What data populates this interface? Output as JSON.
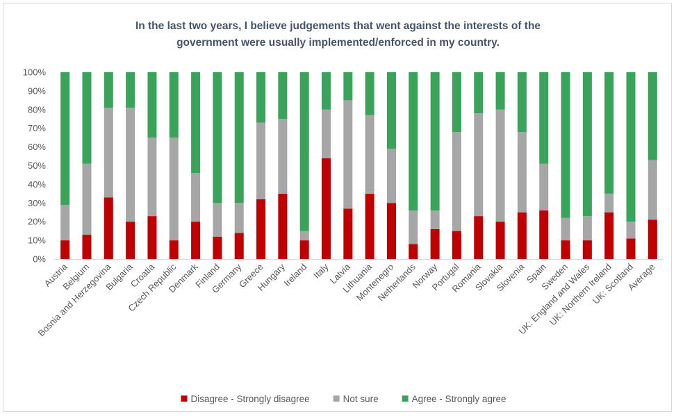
{
  "chart_data": {
    "type": "bar",
    "stacked": true,
    "percent_stacked": true,
    "title_lines": [
      "In the last two years, I believe judgements that went against the interests of the",
      "government were usually implemented/enforced in my country."
    ],
    "xlabel": "",
    "ylabel": "",
    "ylim": [
      0,
      100
    ],
    "y_ticks": [
      "0%",
      "10%",
      "20%",
      "30%",
      "40%",
      "50%",
      "60%",
      "70%",
      "80%",
      "90%",
      "100%"
    ],
    "grid": false,
    "legend_position": "bottom",
    "categories": [
      "Austria",
      "Belgium",
      "Bosnia and Herzegovina",
      "Bulgaria",
      "Croatia",
      "Czech Republic",
      "Denmark",
      "Finland",
      "Germany",
      "Greece",
      "Hungary",
      "Ireland",
      "Italy",
      "Latvia",
      "Lithuania",
      "Montenegro",
      "Netherlands",
      "Norway",
      "Portugal",
      "Romania",
      "Slovakia",
      "Slovenia",
      "Spain",
      "Sweden",
      "UK: England and Wales",
      "UK: Northern Ireland",
      "UK: Scotland",
      "Average"
    ],
    "series": [
      {
        "name": "Disagree - Strongly disagree",
        "color": "#c00000",
        "values": [
          10,
          13,
          33,
          20,
          23,
          10,
          20,
          12,
          14,
          32,
          35,
          10,
          54,
          27,
          35,
          30,
          8,
          16,
          15,
          23,
          20,
          25,
          26,
          10,
          10,
          25,
          11,
          21
        ]
      },
      {
        "name": "Not sure",
        "color": "#a6a6a6",
        "values": [
          19,
          38,
          48,
          61,
          42,
          55,
          26,
          18,
          16,
          41,
          40,
          5,
          26,
          58,
          42,
          29,
          18,
          10,
          53,
          55,
          60,
          43,
          25,
          12,
          13,
          10,
          9,
          32
        ]
      },
      {
        "name": "Agree - Strongly agree",
        "color": "#3aa35a",
        "values": [
          71,
          49,
          19,
          19,
          35,
          35,
          54,
          70,
          70,
          27,
          25,
          85,
          20,
          15,
          23,
          41,
          74,
          74,
          32,
          22,
          20,
          32,
          49,
          78,
          77,
          65,
          80,
          47
        ]
      }
    ]
  }
}
